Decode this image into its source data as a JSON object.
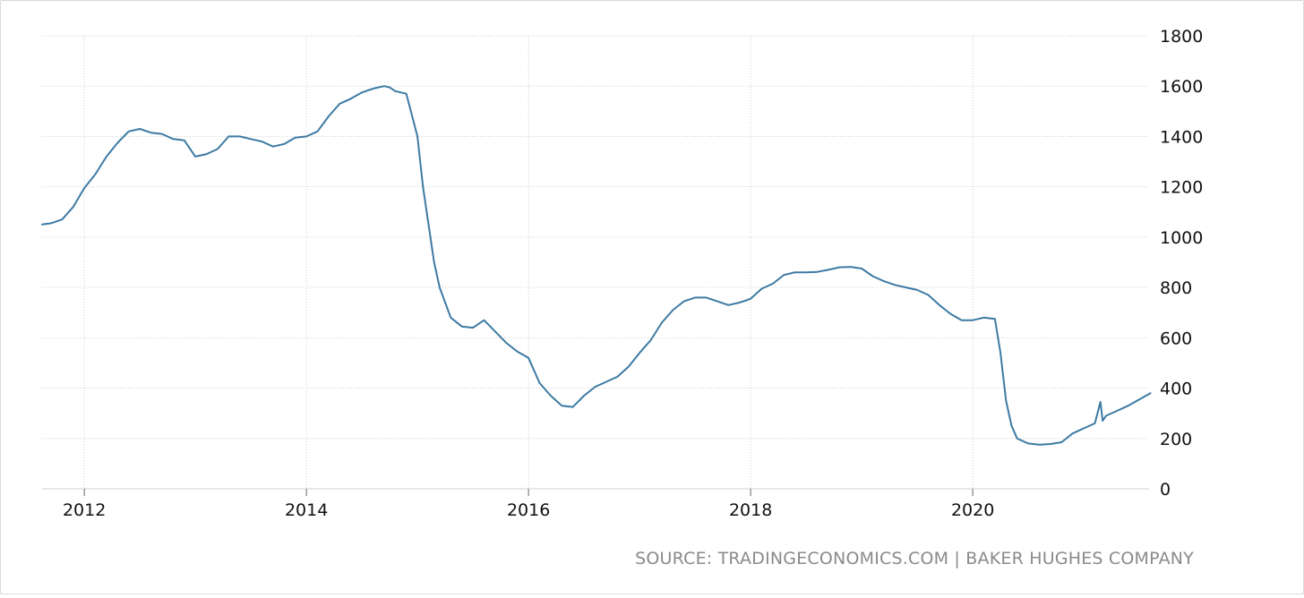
{
  "chart_data": {
    "type": "line",
    "title": "",
    "xlabel": "",
    "ylabel": "",
    "x_ticks": [
      "2012",
      "2014",
      "2016",
      "2018",
      "2020"
    ],
    "y_ticks": [
      0,
      200,
      400,
      600,
      800,
      1000,
      1200,
      1400,
      1600,
      1800
    ],
    "ylim": [
      0,
      1800
    ],
    "xlim": [
      2011.62,
      2021.6
    ],
    "grid": true,
    "legend": "none",
    "series": [
      {
        "color": "#3d7aa3",
        "x": [
          2011.62,
          2011.7,
          2011.8,
          2011.9,
          2012.0,
          2012.1,
          2012.2,
          2012.3,
          2012.4,
          2012.5,
          2012.6,
          2012.7,
          2012.8,
          2012.9,
          2013.0,
          2013.1,
          2013.2,
          2013.3,
          2013.4,
          2013.5,
          2013.6,
          2013.7,
          2013.8,
          2013.9,
          2014.0,
          2014.1,
          2014.2,
          2014.3,
          2014.4,
          2014.5,
          2014.6,
          2014.7,
          2014.75,
          2014.8,
          2014.9,
          2015.0,
          2015.05,
          2015.1,
          2015.15,
          2015.2,
          2015.3,
          2015.4,
          2015.5,
          2015.6,
          2015.7,
          2015.8,
          2015.9,
          2016.0,
          2016.1,
          2016.2,
          2016.3,
          2016.4,
          2016.5,
          2016.6,
          2016.7,
          2016.8,
          2016.9,
          2017.0,
          2017.1,
          2017.2,
          2017.3,
          2017.4,
          2017.5,
          2017.6,
          2017.7,
          2017.8,
          2017.9,
          2018.0,
          2018.1,
          2018.2,
          2018.3,
          2018.4,
          2018.5,
          2018.6,
          2018.7,
          2018.8,
          2018.9,
          2019.0,
          2019.1,
          2019.2,
          2019.3,
          2019.4,
          2019.5,
          2019.6,
          2019.7,
          2019.8,
          2019.9,
          2020.0,
          2020.1,
          2020.2,
          2020.25,
          2020.3,
          2020.35,
          2020.4,
          2020.5,
          2020.6,
          2020.7,
          2020.8,
          2020.9,
          2021.0,
          2021.1,
          2021.15,
          2021.17,
          2021.2,
          2021.3,
          2021.4,
          2021.5,
          2021.6
        ],
        "values": [
          1050,
          1055,
          1070,
          1120,
          1195,
          1250,
          1320,
          1375,
          1420,
          1430,
          1415,
          1410,
          1390,
          1385,
          1320,
          1330,
          1350,
          1400,
          1400,
          1390,
          1380,
          1360,
          1370,
          1395,
          1400,
          1420,
          1480,
          1530,
          1550,
          1575,
          1590,
          1600,
          1595,
          1580,
          1570,
          1400,
          1200,
          1050,
          900,
          800,
          680,
          645,
          640,
          670,
          625,
          580,
          545,
          520,
          420,
          370,
          330,
          325,
          370,
          405,
          425,
          445,
          485,
          540,
          590,
          660,
          710,
          745,
          760,
          760,
          745,
          730,
          740,
          755,
          795,
          815,
          850,
          860,
          860,
          862,
          870,
          880,
          882,
          875,
          845,
          825,
          810,
          800,
          790,
          770,
          730,
          695,
          670,
          670,
          680,
          675,
          540,
          350,
          250,
          200,
          180,
          175,
          178,
          185,
          220,
          240,
          260,
          345,
          270,
          290,
          310,
          330,
          355,
          380
        ]
      }
    ]
  },
  "source_text": "SOURCE: TRADINGECONOMICS.COM | BAKER HUGHES COMPANY"
}
